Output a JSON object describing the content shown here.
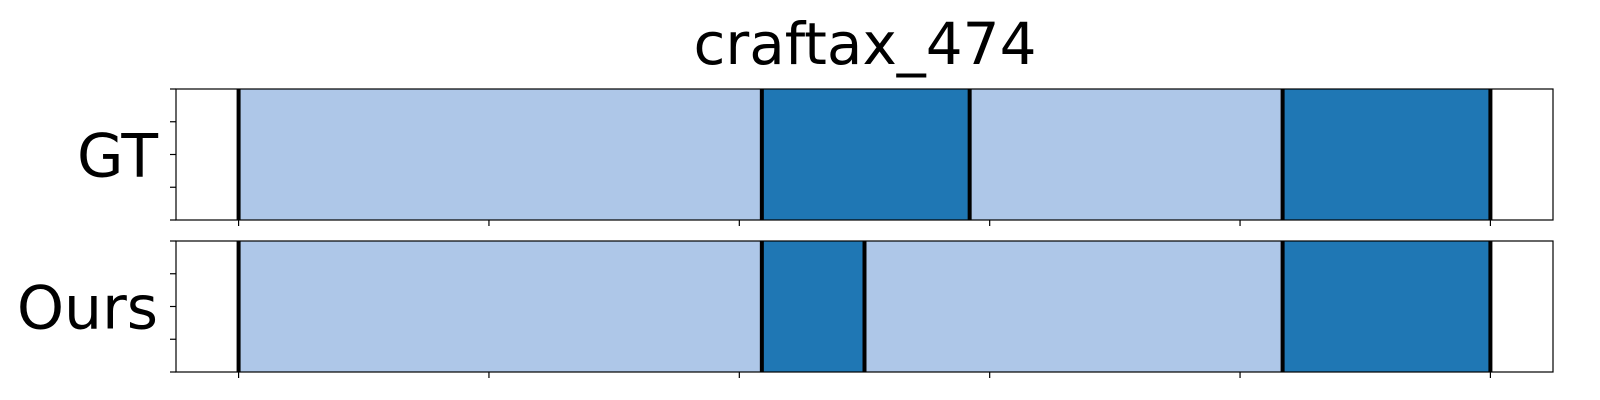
{
  "chart_data": {
    "type": "segmentation-timeline",
    "title": "craftax_474",
    "xlim": [
      0,
      55
    ],
    "x_ticks": [
      2.5,
      12.5,
      22.5,
      32.5,
      42.5,
      52.5
    ],
    "x_tick_labels_visible": false,
    "grid": false,
    "legend": "none",
    "colors": {
      "light": "#aec7e8",
      "dark": "#1f77b4",
      "boundary": "#000000",
      "background": "#ffffff"
    },
    "rows": [
      {
        "label": "GT",
        "segments": [
          {
            "start": 2.5,
            "end": 23.4,
            "class": "light"
          },
          {
            "start": 23.4,
            "end": 31.7,
            "class": "dark"
          },
          {
            "start": 31.7,
            "end": 44.2,
            "class": "light"
          },
          {
            "start": 44.2,
            "end": 52.5,
            "class": "dark"
          }
        ]
      },
      {
        "label": "Ours",
        "segments": [
          {
            "start": 2.5,
            "end": 23.4,
            "class": "light"
          },
          {
            "start": 23.4,
            "end": 27.5,
            "class": "dark"
          },
          {
            "start": 27.5,
            "end": 44.2,
            "class": "light"
          },
          {
            "start": 44.2,
            "end": 52.5,
            "class": "dark"
          }
        ]
      }
    ]
  }
}
